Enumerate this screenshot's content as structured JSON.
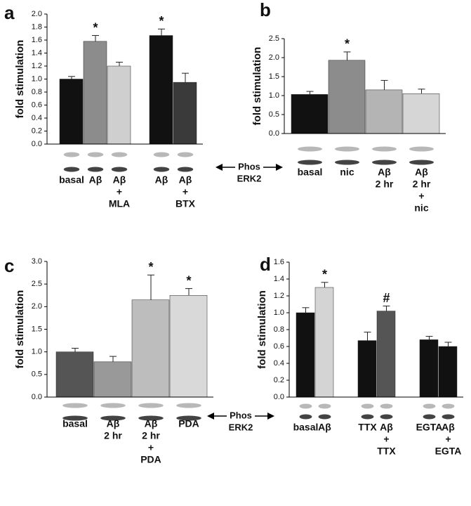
{
  "chart_data": [
    {
      "type": "bar",
      "panel": "a",
      "y_label": "fold stimulation",
      "ylim": [
        0,
        2.0
      ],
      "yticks": [
        {
          "value": 0,
          "label": "0.0"
        },
        {
          "value": 0.2,
          "label": "0.2"
        },
        {
          "value": 0.4,
          "label": "0.4"
        },
        {
          "value": 0.6,
          "label": "0.6"
        },
        {
          "value": 0.8,
          "label": "0.8"
        },
        {
          "value": 1.0,
          "label": "1.0"
        },
        {
          "value": 1.2,
          "label": "1.2"
        },
        {
          "value": 1.4,
          "label": "1.4"
        },
        {
          "value": 1.6,
          "label": "1.6"
        },
        {
          "value": 1.8,
          "label": "1.8"
        },
        {
          "value": 2.0,
          "label": "2.0"
        }
      ],
      "groups": [
        {
          "categories": [
            [
              "basal"
            ],
            [
              "Aβ"
            ],
            [
              "Aβ",
              "+",
              "MLA"
            ]
          ],
          "values": [
            1.0,
            1.58,
            1.2
          ],
          "errors": [
            0.04,
            0.09,
            0.06
          ],
          "colors": [
            "#111111",
            "#8c8c8c",
            "#cfcfcf"
          ],
          "markers": [
            null,
            "*",
            null
          ]
        },
        {
          "categories": [
            [
              "Aβ"
            ],
            [
              "Aβ",
              "+",
              "BTX"
            ]
          ],
          "values": [
            1.67,
            0.95
          ],
          "errors": [
            0.1,
            0.14
          ],
          "colors": [
            "#111111",
            "#3a3a3a"
          ],
          "markers": [
            "*",
            null
          ]
        }
      ]
    },
    {
      "type": "bar",
      "panel": "b",
      "y_label": "fold stimulation",
      "ylim": [
        0,
        2.5
      ],
      "yticks": [
        {
          "value": 0,
          "label": "0.0"
        },
        {
          "value": 0.5,
          "label": "0.5"
        },
        {
          "value": 1.0,
          "label": "1.0"
        },
        {
          "value": 1.5,
          "label": "1.5"
        },
        {
          "value": 2.0,
          "label": "2.0"
        },
        {
          "value": 2.5,
          "label": "2.5"
        }
      ],
      "groups": [
        {
          "categories": [
            [
              "basal"
            ],
            [
              "nic"
            ],
            [
              "Aβ",
              "2 hr"
            ],
            [
              "Aβ",
              "2 hr",
              "+",
              "nic"
            ]
          ],
          "values": [
            1.03,
            1.93,
            1.15,
            1.05
          ],
          "errors": [
            0.08,
            0.22,
            0.25,
            0.12
          ],
          "colors": [
            "#111111",
            "#8c8c8c",
            "#b4b4b4",
            "#d6d6d6"
          ],
          "markers": [
            null,
            "*",
            null,
            null
          ]
        }
      ]
    },
    {
      "type": "bar",
      "panel": "c",
      "y_label": "fold stimulation",
      "ylim": [
        0,
        3.0
      ],
      "yticks": [
        {
          "value": 0,
          "label": "0.0"
        },
        {
          "value": 0.5,
          "label": "0.5"
        },
        {
          "value": 1.0,
          "label": "1.0"
        },
        {
          "value": 1.5,
          "label": "1.5"
        },
        {
          "value": 2.0,
          "label": "2.0"
        },
        {
          "value": 2.5,
          "label": "2.5"
        },
        {
          "value": 3.0,
          "label": "3.0"
        }
      ],
      "groups": [
        {
          "categories": [
            [
              "basal"
            ],
            [
              "Aβ",
              "2 hr"
            ],
            [
              "Aβ",
              "2 hr",
              "+",
              "PDA"
            ],
            [
              "PDA"
            ]
          ],
          "values": [
            1.0,
            0.78,
            2.15,
            2.25
          ],
          "errors": [
            0.08,
            0.12,
            0.55,
            0.15
          ],
          "colors": [
            "#555555",
            "#999999",
            "#bdbdbd",
            "#d9d9d9"
          ],
          "markers": [
            null,
            null,
            "*",
            "*"
          ]
        }
      ]
    },
    {
      "type": "bar",
      "panel": "d",
      "y_label": "fold stimulation",
      "ylim": [
        0,
        1.6
      ],
      "yticks": [
        {
          "value": 0,
          "label": "0.0"
        },
        {
          "value": 0.2,
          "label": "0.2"
        },
        {
          "value": 0.4,
          "label": "0.4"
        },
        {
          "value": 0.6,
          "label": "0.6"
        },
        {
          "value": 0.8,
          "label": "0.8"
        },
        {
          "value": 1.0,
          "label": "1.0"
        },
        {
          "value": 1.2,
          "label": "1.2"
        },
        {
          "value": 1.4,
          "label": "1.4"
        },
        {
          "value": 1.6,
          "label": "1.6"
        }
      ],
      "groups": [
        {
          "categories": [
            [
              "basal"
            ],
            [
              "Aβ"
            ]
          ],
          "values": [
            1.0,
            1.3
          ],
          "errors": [
            0.06,
            0.06
          ],
          "colors": [
            "#111111",
            "#d4d4d4"
          ],
          "markers": [
            null,
            "*"
          ]
        },
        {
          "categories": [
            [
              "TTX"
            ],
            [
              "Aβ",
              "+",
              "TTX"
            ]
          ],
          "values": [
            0.67,
            1.02
          ],
          "errors": [
            0.1,
            0.06
          ],
          "colors": [
            "#111111",
            "#555555"
          ],
          "markers": [
            null,
            "#"
          ]
        },
        {
          "categories": [
            [
              "EGTA"
            ],
            [
              "Aβ",
              "+",
              "EGTA"
            ]
          ],
          "values": [
            0.68,
            0.6
          ],
          "errors": [
            0.04,
            0.05
          ],
          "colors": [
            "#111111",
            "#111111"
          ],
          "markers": [
            null,
            null
          ]
        }
      ]
    }
  ],
  "blot_label": [
    "Phos",
    "ERK2"
  ]
}
